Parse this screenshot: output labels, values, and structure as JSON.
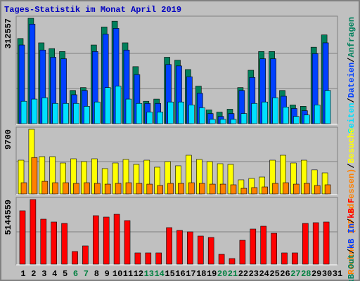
{
  "title": "Tages-Statistik im Monat April 2019",
  "weekend_color": "#008040",
  "chart_data": [
    {
      "type": "bar",
      "categories": [
        "1",
        "2",
        "3",
        "4",
        "5",
        "6",
        "7",
        "8",
        "9",
        "10",
        "11",
        "12",
        "13",
        "14",
        "15",
        "16",
        "17",
        "18",
        "19",
        "20",
        "21",
        "22",
        "23",
        "24",
        "25",
        "26",
        "27",
        "28",
        "29",
        "30",
        "31"
      ],
      "weekend_days": [
        5,
        6,
        12,
        13,
        19,
        20,
        26,
        27
      ],
      "ylim": [
        0,
        312557
      ],
      "yticks": [
        312557
      ],
      "gridlines": [
        104186,
        208371
      ],
      "legend_separator": "/",
      "series": [
        {
          "name": "Anfragen",
          "color": "#00805c",
          "values": [
            252500,
            312557,
            239700,
            222600,
            214000,
            98400,
            107000,
            233300,
            286800,
            303900,
            239700,
            169100,
            66300,
            72800,
            196900,
            188300,
            160500,
            111300,
            40700,
            34200,
            42800,
            107000,
            158400,
            214000,
            214000,
            98400,
            55600,
            51400,
            226800,
            263200,
            null
          ]
        },
        {
          "name": "Dateien",
          "color": "#0040ff",
          "values": [
            233300,
            295300,
            218300,
            196900,
            192600,
            85600,
            98400,
            214000,
            265400,
            282500,
            218300,
            145500,
            59900,
            59900,
            175500,
            171200,
            139100,
            89900,
            30000,
            21400,
            30000,
            98400,
            137000,
            192600,
            192600,
            81300,
            44900,
            38500,
            207600,
            239700,
            null
          ]
        },
        {
          "name": "Seiten",
          "color": "#00e0ff",
          "values": [
            66300,
            72800,
            77000,
            59900,
            59900,
            59900,
            51400,
            64200,
            107000,
            111300,
            72800,
            59900,
            34200,
            34200,
            64200,
            64200,
            55600,
            47100,
            12800,
            12800,
            12800,
            30000,
            59900,
            64200,
            77000,
            49200,
            21400,
            25700,
            55600,
            98400,
            null
          ]
        }
      ]
    },
    {
      "type": "bar",
      "ylim": [
        0,
        9700
      ],
      "yticks": [
        9700
      ],
      "gridlines": [
        4850
      ],
      "legend_separator": "/",
      "series": [
        {
          "name": "Besuche",
          "color": "#ffff00",
          "values": [
            5060,
            9700,
            5590,
            5590,
            4640,
            5270,
            4850,
            5270,
            3800,
            4640,
            5170,
            4430,
            5060,
            4010,
            4850,
            4220,
            5800,
            5170,
            4850,
            4530,
            4430,
            2110,
            2320,
            2530,
            5060,
            5800,
            4640,
            5060,
            3600,
            3160,
            null
          ]
        },
        {
          "name": "Rechner (IP-Adressen)",
          "color": "#ff8000",
          "values": [
            1680,
            5460,
            1890,
            1680,
            1680,
            1580,
            1680,
            1580,
            1470,
            1580,
            1680,
            1580,
            1470,
            1260,
            1580,
            1580,
            1680,
            1580,
            1470,
            1470,
            1370,
            840,
            950,
            1050,
            1580,
            1680,
            1470,
            1580,
            1260,
            1370,
            null
          ]
        }
      ]
    },
    {
      "type": "bar",
      "ylim": [
        0,
        5144559
      ],
      "yticks": [
        5144559
      ],
      "gridlines": [
        2572280
      ],
      "legend_separator": "/",
      "series": [
        {
          "name": "kB F",
          "color": "#ff0000",
          "values": [
            4250000,
            5144559,
            3580000,
            3355000,
            3243000,
            1006000,
            1454000,
            3858000,
            3747000,
            3970000,
            3467000,
            895000,
            895000,
            895000,
            2908000,
            2684000,
            2572000,
            2237000,
            2125000,
            783000,
            447000,
            1901000,
            2796000,
            3020000,
            2460000,
            895000,
            895000,
            3243000,
            3300000,
            3355000,
            null
          ]
        }
      ],
      "extra_legend": [
        {
          "name": "kB In",
          "color": "#0040ff"
        },
        {
          "name": "kB Out",
          "color": "#00805c"
        }
      ]
    }
  ]
}
